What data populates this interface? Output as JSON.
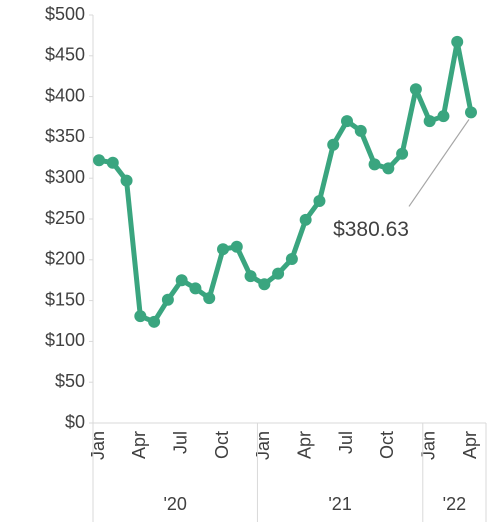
{
  "chart_data": {
    "type": "line",
    "categories": [
      "Jan",
      null,
      null,
      "Apr",
      null,
      null,
      "Jul",
      null,
      null,
      "Oct",
      null,
      null,
      "Jan",
      null,
      null,
      "Apr",
      null,
      null,
      "Jul",
      null,
      null,
      "Oct",
      null,
      null,
      "Jan",
      null,
      null,
      "Apr"
    ],
    "x_groups": [
      {
        "label": "'20",
        "size": 12
      },
      {
        "label": "'21",
        "size": 12
      },
      {
        "label": "'22",
        "size": 4
      }
    ],
    "series": [
      {
        "color": "#3aa57f",
        "values": [
          322,
          319,
          297,
          131,
          124,
          151,
          175,
          165,
          153,
          213,
          216,
          180,
          170,
          183,
          201,
          249,
          272,
          341,
          370,
          358,
          317,
          312,
          330,
          409,
          370,
          376,
          467,
          380.63
        ],
        "value_labels": [
          null,
          null,
          null,
          null,
          null,
          null,
          null,
          null,
          null,
          null,
          null,
          null,
          null,
          null,
          null,
          null,
          null,
          null,
          null,
          null,
          null,
          null,
          null,
          null,
          null,
          null,
          null,
          "$380.63"
        ]
      }
    ],
    "ylim": [
      0,
      500
    ],
    "yticks": [
      {
        "value": 0,
        "label": "$0"
      },
      {
        "value": 50,
        "label": "$50"
      },
      {
        "value": 100,
        "label": "$100"
      },
      {
        "value": 150,
        "label": "$150"
      },
      {
        "value": 200,
        "label": "$200"
      },
      {
        "value": 250,
        "label": "$250"
      },
      {
        "value": 300,
        "label": "$300"
      },
      {
        "value": 350,
        "label": "$350"
      },
      {
        "value": 400,
        "label": "$400"
      },
      {
        "value": 450,
        "label": "$450"
      },
      {
        "value": 500,
        "label": "$500"
      }
    ],
    "grid": false
  }
}
